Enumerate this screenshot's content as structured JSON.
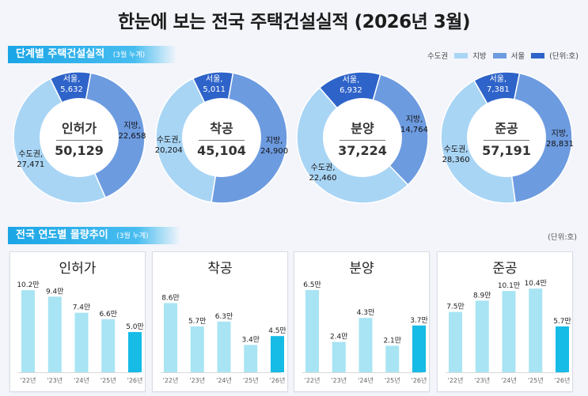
{
  "title": "한눈에 보는 전국 주택건설실적 (2026년 3월)",
  "section1": {
    "title": "단계별 주택건설실적",
    "sub": "(3월 누계)"
  },
  "section2": {
    "title": "전국 연도별 물량추이",
    "sub": "(3월 누계)",
    "unit": "(단위:호)"
  },
  "legend": {
    "items": [
      {
        "label": "수도권",
        "color": "#a9d5f5"
      },
      {
        "label": "지방",
        "color": "#6d9be0"
      },
      {
        "label": "서울",
        "color": "#2e63c9"
      }
    ],
    "unit": "(단위:호)"
  },
  "chart_data": [
    {
      "type": "pie",
      "name": "인허가",
      "total": "50,129",
      "slices": [
        {
          "region": "수도권",
          "label": "수도권,",
          "value": 27471,
          "display": "27,471",
          "color": "#a9d5f5"
        },
        {
          "region": "지방",
          "label": "지방,",
          "value": 22658,
          "display": "22,658",
          "color": "#6d9be0"
        },
        {
          "region": "서울",
          "label": "서울,",
          "value": 5632,
          "display": "5,632",
          "color": "#2e63c9"
        }
      ]
    },
    {
      "type": "pie",
      "name": "착공",
      "total": "45,104",
      "slices": [
        {
          "region": "수도권",
          "label": "수도권,",
          "value": 20204,
          "display": "20,204",
          "color": "#a9d5f5"
        },
        {
          "region": "지방",
          "label": "지방,",
          "value": 24900,
          "display": "24,900",
          "color": "#6d9be0"
        },
        {
          "region": "서울",
          "label": "서울,",
          "value": 5011,
          "display": "5,011",
          "color": "#2e63c9"
        }
      ]
    },
    {
      "type": "pie",
      "name": "분양",
      "total": "37,224",
      "slices": [
        {
          "region": "수도권",
          "label": "수도권,",
          "value": 22460,
          "display": "22,460",
          "color": "#a9d5f5"
        },
        {
          "region": "지방",
          "label": "지방,",
          "value": 14764,
          "display": "14,764",
          "color": "#6d9be0"
        },
        {
          "region": "서울",
          "label": "서울,",
          "value": 6932,
          "display": "6,932",
          "color": "#2e63c9"
        }
      ]
    },
    {
      "type": "pie",
      "name": "준공",
      "total": "57,191",
      "slices": [
        {
          "region": "수도권",
          "label": "수도권,",
          "value": 28360,
          "display": "28,360",
          "color": "#a9d5f5"
        },
        {
          "region": "지방",
          "label": "지방,",
          "value": 28831,
          "display": "28,831",
          "color": "#6d9be0"
        },
        {
          "region": "서울",
          "label": "서울,",
          "value": 7381,
          "display": "7,381",
          "color": "#2e63c9"
        }
      ]
    },
    {
      "type": "bar",
      "title": "인허가",
      "categories": [
        "'22년",
        "'23년",
        "'24년",
        "'25년",
        "'26년"
      ],
      "values": [
        10.2,
        9.4,
        7.4,
        6.6,
        5.0
      ],
      "labels": [
        "10.2만",
        "9.4만",
        "7.4만",
        "6.6만",
        "5.0만"
      ],
      "ylim": [
        0,
        11
      ]
    },
    {
      "type": "bar",
      "title": "착공",
      "categories": [
        "'22년",
        "'23년",
        "'24년",
        "'25년",
        "'26년"
      ],
      "values": [
        8.6,
        5.7,
        6.3,
        3.4,
        4.5
      ],
      "labels": [
        "8.6만",
        "5.7만",
        "6.3만",
        "3.4만",
        "4.5만"
      ],
      "ylim": [
        0,
        11
      ]
    },
    {
      "type": "bar",
      "title": "분양",
      "categories": [
        "'22년",
        "'23년",
        "'24년",
        "'25년",
        "'26년"
      ],
      "values": [
        6.5,
        2.4,
        4.3,
        2.1,
        3.7
      ],
      "labels": [
        "6.5만",
        "2.4만",
        "4.3만",
        "2.1만",
        "3.7만"
      ],
      "ylim": [
        0,
        7
      ]
    },
    {
      "type": "bar",
      "title": "준공",
      "categories": [
        "'22년",
        "'23년",
        "'24년",
        "'25년",
        "'26년"
      ],
      "values": [
        7.5,
        8.9,
        10.1,
        10.4,
        5.7
      ],
      "labels": [
        "7.5만",
        "8.9만",
        "10.1만",
        "10.4만",
        "5.7만"
      ],
      "ylim": [
        0,
        11
      ]
    }
  ],
  "colors": {
    "bar_past": "#a8e4f3",
    "bar_current": "#16bbe6",
    "accent": "#1aa5e6"
  }
}
